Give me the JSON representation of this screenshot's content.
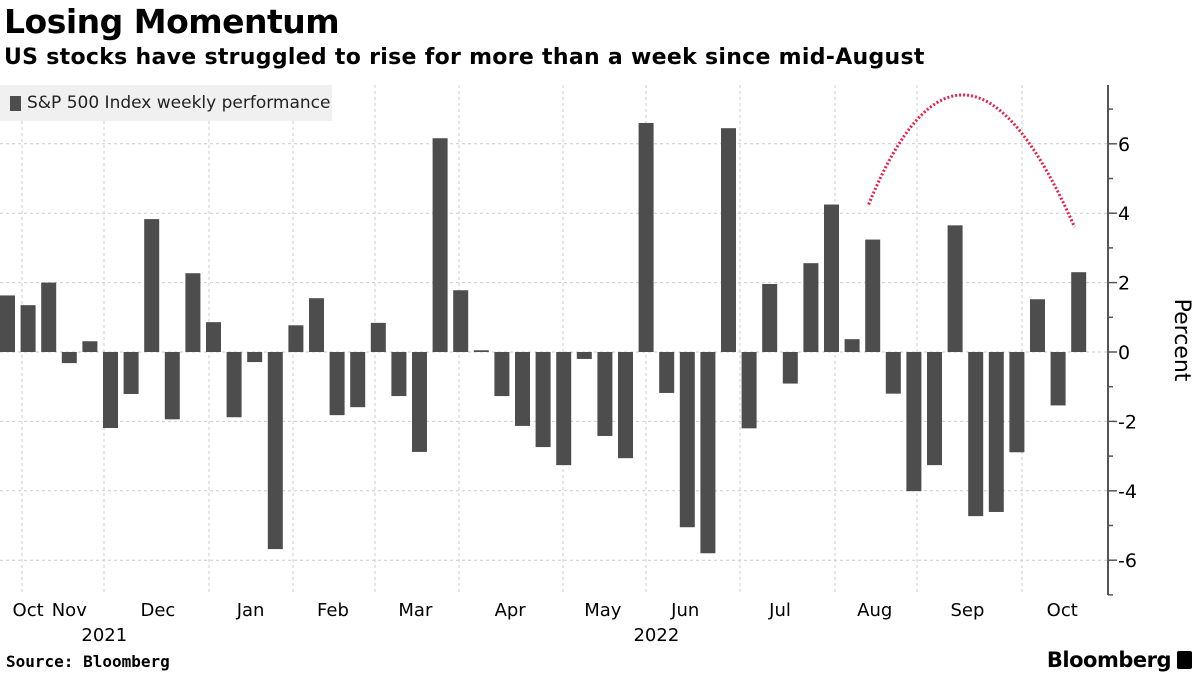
{
  "title": "Losing Momentum",
  "subtitle": "US stocks have struggled to rise for more than a week since mid-August",
  "source": "Source: Bloomberg",
  "logo": "Bloomberg",
  "chart_data": {
    "type": "bar",
    "title": "Losing Momentum",
    "legend": [
      "S&P 500 Index weekly performance"
    ],
    "legend_placement": "top-left",
    "ylabel": "Percent",
    "xlabel": "",
    "ylim": [
      -7,
      7.7
    ],
    "yticks": [
      -6,
      -4,
      -2,
      0,
      2,
      4,
      6
    ],
    "ytick_labels": [
      "-6",
      "-4",
      "-2",
      "0",
      "2",
      "4",
      "6"
    ],
    "grid": true,
    "bar_color": "#4d4d4d",
    "annotation_color": "#e8204a",
    "month_labels": [
      {
        "label": "Oct",
        "bar": 1
      },
      {
        "label": "Nov",
        "bar": 3
      },
      {
        "label": "Dec",
        "bar": 7.3
      },
      {
        "label": "Jan",
        "bar": 11.8
      },
      {
        "label": "Feb",
        "bar": 15.8
      },
      {
        "label": "Mar",
        "bar": 19.8
      },
      {
        "label": "Apr",
        "bar": 24.4
      },
      {
        "label": "May",
        "bar": 28.9
      },
      {
        "label": "Jun",
        "bar": 32.9
      },
      {
        "label": "Jul",
        "bar": 37.5
      },
      {
        "label": "Aug",
        "bar": 42.1
      },
      {
        "label": "Sep",
        "bar": 46.6
      },
      {
        "label": "Oct",
        "bar": 51.2
      }
    ],
    "year_labels": [
      {
        "label": "2021",
        "bar": 4.7
      },
      {
        "label": "2022",
        "bar": 31.5
      }
    ],
    "values": [
      1.63,
      1.35,
      2.0,
      -0.32,
      0.31,
      -2.19,
      -1.21,
      3.83,
      -1.94,
      2.27,
      0.86,
      -1.88,
      -0.29,
      -5.68,
      0.77,
      1.55,
      -1.82,
      -1.59,
      0.84,
      -1.27,
      -2.88,
      6.16,
      1.78,
      0.05,
      -1.27,
      -2.13,
      -2.74,
      -3.26,
      -0.2,
      -2.42,
      -3.06,
      6.6,
      -1.18,
      -5.05,
      -5.8,
      6.45,
      -2.2,
      1.96,
      -0.91,
      2.56,
      4.25,
      0.37,
      3.24,
      -1.2,
      -4.01,
      -3.26,
      3.65,
      -4.73,
      -4.61,
      -2.89,
      1.52,
      -1.54,
      2.3
    ],
    "annotation_arc": [
      [
        41.8,
        4.25
      ],
      [
        46.6,
        7.4
      ],
      [
        51.8,
        3.6
      ]
    ]
  }
}
